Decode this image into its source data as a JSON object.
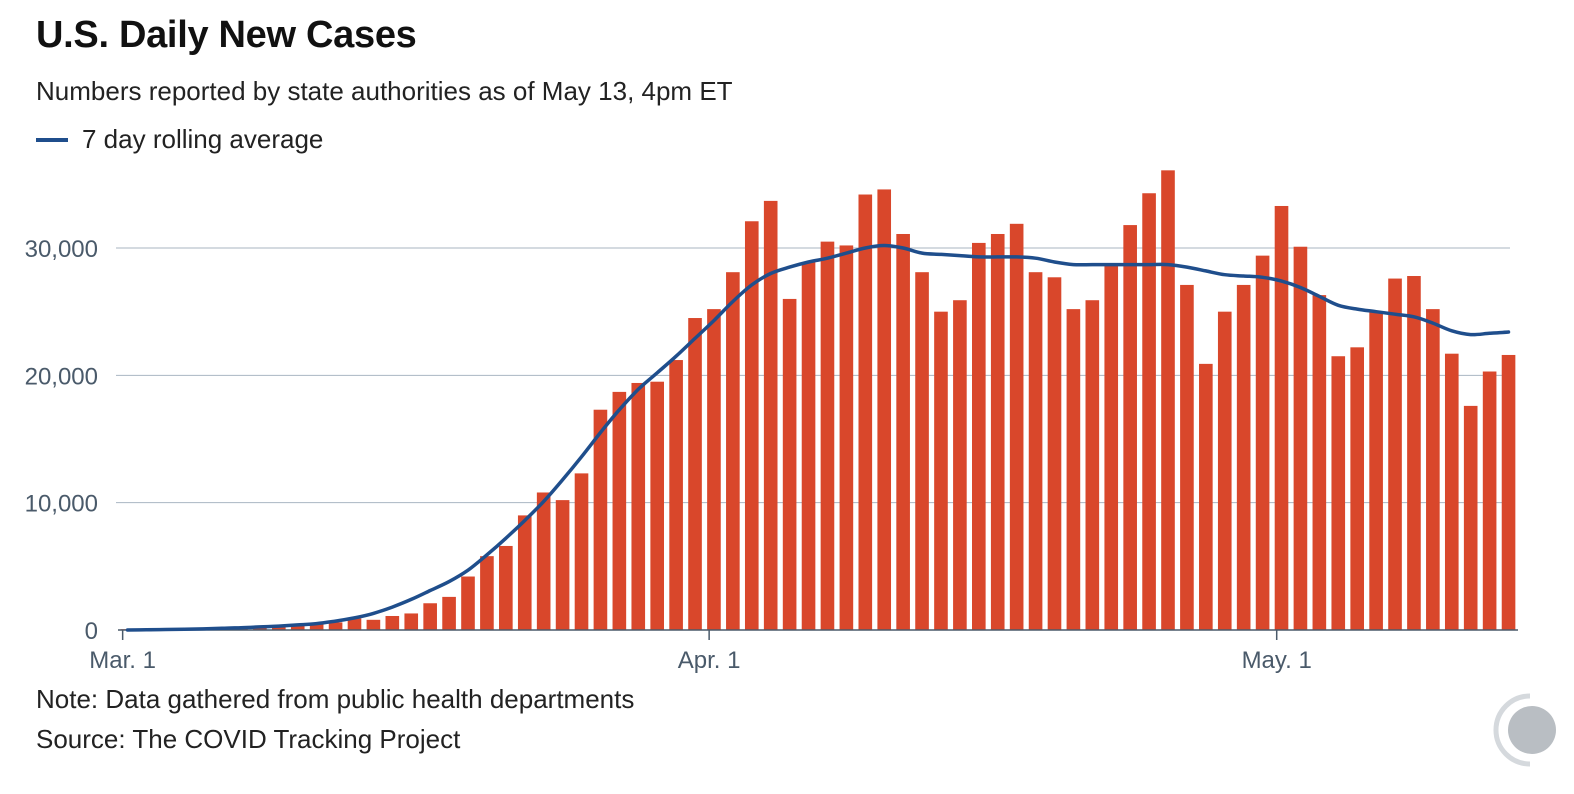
{
  "header": {
    "title": "U.S. Daily New Cases",
    "subtitle": "Numbers reported by state authorities as of May 13, 4pm ET"
  },
  "legend": {
    "label": "7 day rolling average",
    "color": "#1f4e8c"
  },
  "footer": {
    "note": "Note: Data gathered from public health departments",
    "source": "Source: The COVID Tracking Project"
  },
  "logo_icon": "covid-tracking-project-logo-icon",
  "colors": {
    "bar": "#d9472b",
    "line": "#1f4e8c",
    "grid": "#a9b6c2",
    "axis": "#4a5a6a"
  },
  "chart_data": {
    "type": "bar",
    "title": "U.S. Daily New Cases",
    "xlabel": "",
    "ylabel": "",
    "ylim": [
      0,
      36000
    ],
    "yticks": [
      {
        "value": 0,
        "label": "0"
      },
      {
        "value": 10000,
        "label": "10,000"
      },
      {
        "value": 20000,
        "label": "20,000"
      },
      {
        "value": 30000,
        "label": "30,000"
      }
    ],
    "xticks": [
      {
        "index": 0,
        "label": "Mar. 1"
      },
      {
        "index": 31,
        "label": "Apr. 1"
      },
      {
        "index": 61,
        "label": "May. 1"
      }
    ],
    "grid": true,
    "legend_position": "top-left",
    "series": [
      {
        "type": "bar",
        "values": [
          0,
          20,
          20,
          50,
          80,
          150,
          250,
          300,
          350,
          400,
          500,
          600,
          900,
          800,
          1100,
          1300,
          2100,
          2600,
          4200,
          5800,
          6600,
          9000,
          10800,
          10200,
          12300,
          17300,
          18700,
          19400,
          19500,
          21200,
          24500,
          25200,
          28100,
          32100,
          33700,
          26000,
          28900,
          30500,
          30200,
          34200,
          34600,
          31100,
          28100,
          25000,
          25900,
          30400,
          31100,
          31900,
          28100,
          27700,
          25200,
          25900,
          28700,
          31800,
          34300,
          36100,
          27100,
          20900,
          25000,
          27100,
          29400,
          33300,
          30100,
          26300,
          21500,
          22200,
          25000,
          27600,
          27800,
          25200,
          21700,
          17600,
          20300,
          21600
        ]
      },
      {
        "type": "line",
        "name": "7 day rolling average",
        "values": [
          0,
          20,
          40,
          60,
          90,
          130,
          180,
          240,
          310,
          400,
          500,
          700,
          950,
          1300,
          1800,
          2400,
          3100,
          3800,
          4700,
          5900,
          7200,
          8600,
          10100,
          11800,
          13600,
          15500,
          17300,
          18900,
          20200,
          21500,
          22900,
          24300,
          25800,
          27100,
          28000,
          28500,
          28900,
          29200,
          29600,
          30000,
          30200,
          30000,
          29600,
          29500,
          29400,
          29300,
          29300,
          29300,
          29200,
          28900,
          28700,
          28700,
          28700,
          28700,
          28700,
          28700,
          28500,
          28200,
          27900,
          27800,
          27700,
          27400,
          26900,
          26200,
          25500,
          25200,
          25000,
          24800,
          24600,
          24100,
          23500,
          23200,
          23300,
          23400
        ]
      }
    ]
  }
}
